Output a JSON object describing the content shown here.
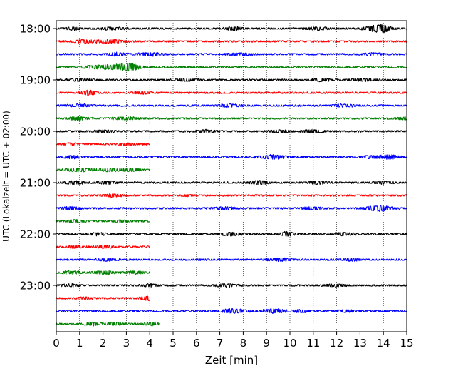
{
  "chart_data": {
    "type": "line",
    "title": "",
    "xlabel": "Zeit  [min]",
    "ylabel": "UTC (Lokalzeit = UTC + 02:00)",
    "xlim": [
      0,
      15
    ],
    "x_ticks": [
      "0",
      "1",
      "2",
      "3",
      "4",
      "5",
      "6",
      "7",
      "8",
      "9",
      "10",
      "11",
      "12",
      "13",
      "14",
      "15"
    ],
    "y_tick_labels": [
      "18:00",
      "19:00",
      "20:00",
      "21:00",
      "22:00",
      "23:00"
    ],
    "grid": "vertical dotted",
    "trace_interval_min": 15,
    "trace_color_cycle": [
      "#000000",
      "#ff0000",
      "#0000ff",
      "#008000"
    ],
    "traces": [
      {
        "start": "18:00",
        "end_min": 15,
        "bursts": [
          [
            0.7,
            0.3,
            0.8
          ],
          [
            2.4,
            0.5,
            0.7
          ],
          [
            7.6,
            0.3,
            1.2
          ],
          [
            11.2,
            0.5,
            0.8
          ],
          [
            13.7,
            0.5,
            1.8
          ],
          [
            14.0,
            0.3,
            1.2
          ]
        ]
      },
      {
        "start": "18:15",
        "end_min": 15,
        "bursts": [
          [
            1.2,
            0.5,
            0.8
          ],
          [
            2.3,
            0.6,
            1.0
          ]
        ]
      },
      {
        "start": "18:30",
        "end_min": 15,
        "bursts": [
          [
            2.6,
            0.4,
            0.8
          ],
          [
            4.0,
            0.5,
            0.9
          ],
          [
            7.8,
            0.5,
            0.7
          ],
          [
            13.6,
            0.4,
            0.8
          ]
        ]
      },
      {
        "start": "18:45",
        "end_min": 15,
        "bursts": [
          [
            1.7,
            0.6,
            0.8
          ],
          [
            2.8,
            0.7,
            1.8
          ],
          [
            3.2,
            0.4,
            1.0
          ]
        ]
      },
      {
        "start": "19:00",
        "end_min": 15,
        "bursts": [
          [
            1.0,
            0.4,
            0.8
          ],
          [
            5.6,
            0.5,
            0.6
          ],
          [
            11.3,
            0.4,
            0.8
          ],
          [
            13.2,
            0.5,
            0.7
          ]
        ]
      },
      {
        "start": "19:15",
        "end_min": 15,
        "bursts": [
          [
            1.4,
            0.3,
            1.6
          ],
          [
            3.7,
            0.4,
            0.7
          ]
        ]
      },
      {
        "start": "19:30",
        "end_min": 15,
        "bursts": [
          [
            1.0,
            0.5,
            0.7
          ],
          [
            7.4,
            0.5,
            0.8
          ],
          [
            12.3,
            0.4,
            0.9
          ]
        ]
      },
      {
        "start": "19:45",
        "end_min": 15,
        "bursts": [
          [
            0.9,
            0.4,
            1.0
          ],
          [
            3.0,
            0.6,
            0.7
          ],
          [
            14.9,
            0.3,
            0.8
          ]
        ]
      },
      {
        "start": "20:00",
        "end_min": 15,
        "bursts": [
          [
            2.0,
            0.4,
            0.7
          ],
          [
            6.4,
            0.4,
            0.7
          ],
          [
            9.6,
            0.4,
            0.8
          ],
          [
            11.0,
            0.4,
            1.0
          ]
        ]
      },
      {
        "start": "20:15",
        "end_min": 4,
        "bursts": [
          [
            0.6,
            0.3,
            0.6
          ],
          [
            3.0,
            0.4,
            0.6
          ]
        ]
      },
      {
        "start": "20:30",
        "end_min": 15,
        "bursts": [
          [
            0.7,
            0.4,
            0.8
          ],
          [
            9.3,
            0.6,
            1.1
          ],
          [
            13.5,
            0.5,
            0.8
          ],
          [
            14.3,
            0.4,
            1.0
          ]
        ]
      },
      {
        "start": "20:45",
        "end_min": 4,
        "bursts": [
          [
            1.0,
            0.5,
            1.1
          ],
          [
            2.3,
            0.5,
            0.8
          ],
          [
            3.2,
            0.4,
            0.8
          ]
        ]
      },
      {
        "start": "21:00",
        "end_min": 15,
        "bursts": [
          [
            0.8,
            0.4,
            1.0
          ],
          [
            2.2,
            0.4,
            0.8
          ],
          [
            8.7,
            0.4,
            1.2
          ],
          [
            11.2,
            0.4,
            0.9
          ],
          [
            14.0,
            0.4,
            0.8
          ]
        ]
      },
      {
        "start": "21:15",
        "end_min": 15,
        "bursts": [
          [
            2.4,
            0.4,
            0.9
          ],
          [
            5.6,
            0.2,
            0.5
          ]
        ]
      },
      {
        "start": "21:30",
        "end_min": 15,
        "bursts": [
          [
            0.6,
            0.4,
            0.8
          ],
          [
            7.2,
            0.5,
            0.8
          ],
          [
            11.0,
            0.4,
            0.8
          ],
          [
            13.8,
            0.5,
            1.8
          ]
        ]
      },
      {
        "start": "21:45",
        "end_min": 4,
        "bursts": [
          [
            0.8,
            0.4,
            0.8
          ],
          [
            2.8,
            0.4,
            0.6
          ]
        ]
      },
      {
        "start": "22:00",
        "end_min": 15,
        "bursts": [
          [
            1.8,
            0.4,
            0.7
          ],
          [
            7.5,
            0.5,
            1.0
          ],
          [
            9.9,
            0.3,
            1.4
          ],
          [
            12.3,
            0.4,
            0.8
          ]
        ]
      },
      {
        "start": "22:15",
        "end_min": 4,
        "bursts": [
          [
            0.8,
            0.3,
            0.6
          ],
          [
            2.1,
            0.4,
            0.7
          ]
        ]
      },
      {
        "start": "22:30",
        "end_min": 15,
        "bursts": [
          [
            2.2,
            0.4,
            0.7
          ],
          [
            9.6,
            0.5,
            0.8
          ],
          [
            12.6,
            0.4,
            0.7
          ]
        ]
      },
      {
        "start": "22:45",
        "end_min": 4,
        "bursts": [
          [
            0.6,
            0.4,
            0.9
          ],
          [
            2.1,
            0.5,
            0.9
          ],
          [
            3.4,
            0.4,
            0.7
          ]
        ]
      },
      {
        "start": "23:00",
        "end_min": 15,
        "bursts": [
          [
            0.6,
            0.4,
            0.7
          ],
          [
            4.0,
            0.4,
            0.7
          ],
          [
            7.3,
            0.5,
            0.8
          ],
          [
            11.9,
            0.5,
            0.7
          ]
        ]
      },
      {
        "start": "23:15",
        "end_min": 4,
        "bursts": [
          [
            1.2,
            0.3,
            0.7
          ],
          [
            3.9,
            0.3,
            1.3
          ]
        ]
      },
      {
        "start": "23:30",
        "end_min": 15,
        "bursts": [
          [
            7.6,
            0.5,
            1.3
          ],
          [
            9.3,
            0.5,
            1.2
          ],
          [
            10.5,
            0.4,
            0.8
          ],
          [
            12.4,
            0.4,
            0.7
          ]
        ]
      },
      {
        "start": "23:45",
        "end_min": 4.4,
        "bursts": [
          [
            1.5,
            0.3,
            0.9
          ],
          [
            2.5,
            0.4,
            0.7
          ],
          [
            4.1,
            0.3,
            0.9
          ]
        ]
      }
    ]
  }
}
